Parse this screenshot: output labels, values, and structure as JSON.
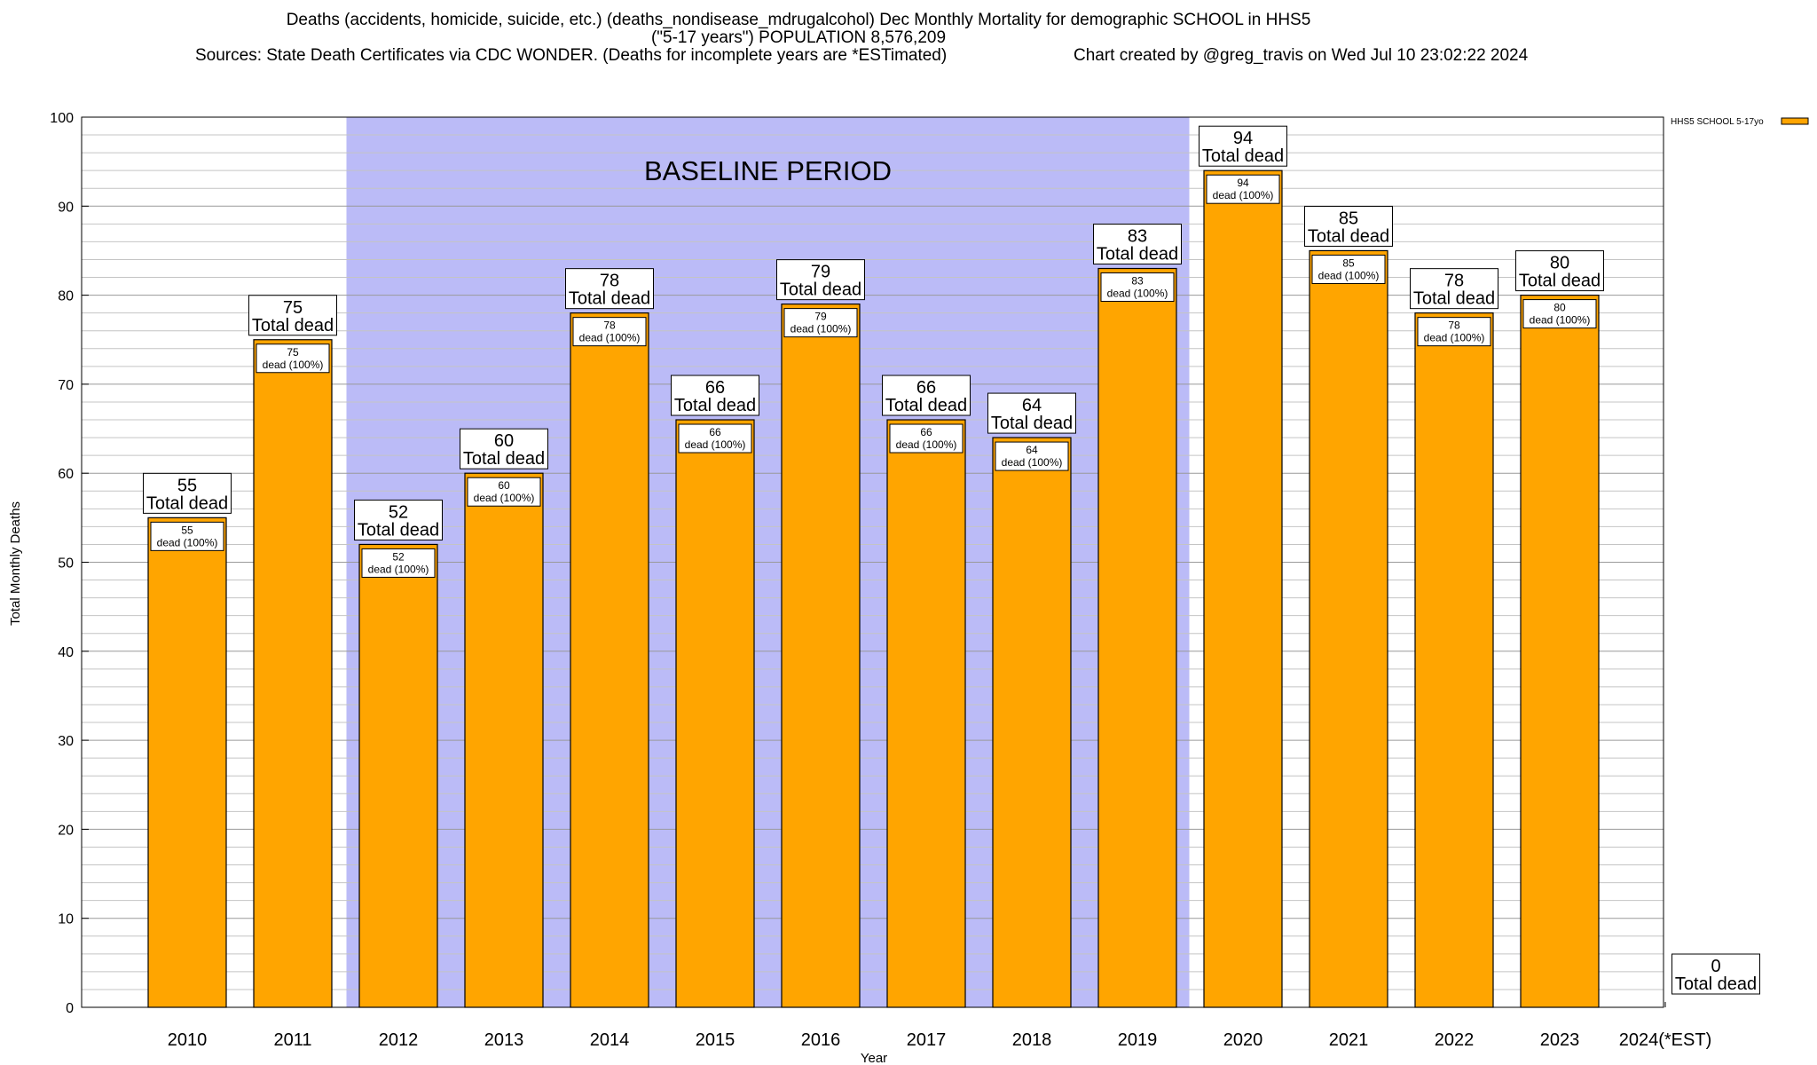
{
  "header": {
    "line1": "Deaths (accidents, homicide, suicide, etc.) (deaths_nondisease_mdrugalcohol) Dec Monthly Mortality for demographic SCHOOL in HHS5",
    "line2": "(\"5-17 years\") POPULATION 8,576,209",
    "line3": "Sources: State Death Certificates via CDC WONDER. (Deaths for incomplete years are *ESTimated)",
    "line4": "Chart created by @greg_travis on Wed Jul 10 23:02:22 2024"
  },
  "chart_data": {
    "type": "bar",
    "title": "Deaths (accidents, homicide, suicide, etc.) (deaths_nondisease_mdrugalcohol) Dec Monthly Mortality for demographic SCHOOL in HHS5",
    "xlabel": "Year",
    "ylabel": "Total Monthly Deaths",
    "ylim": [
      0,
      100
    ],
    "yticks": [
      0,
      10,
      20,
      30,
      40,
      50,
      60,
      70,
      80,
      90,
      100
    ],
    "grid": true,
    "legend_position": "top-right",
    "categories": [
      "2010",
      "2011",
      "2012",
      "2013",
      "2014",
      "2015",
      "2016",
      "2017",
      "2018",
      "2019",
      "2020",
      "2021",
      "2022",
      "2023",
      "2024(*EST)"
    ],
    "series": [
      {
        "name": "HHS5 SCHOOL 5-17yo",
        "color": "#ffa500",
        "values": [
          55,
          75,
          52,
          60,
          78,
          66,
          79,
          66,
          64,
          83,
          94,
          85,
          78,
          80,
          0
        ]
      }
    ],
    "total_label_suffix": "Total dead",
    "inner_label_suffix": "dead (100%)",
    "baseline_period": {
      "label": "BASELINE PERIOD",
      "from": "2012",
      "to": "2019",
      "color": "#bbbbf7"
    }
  }
}
